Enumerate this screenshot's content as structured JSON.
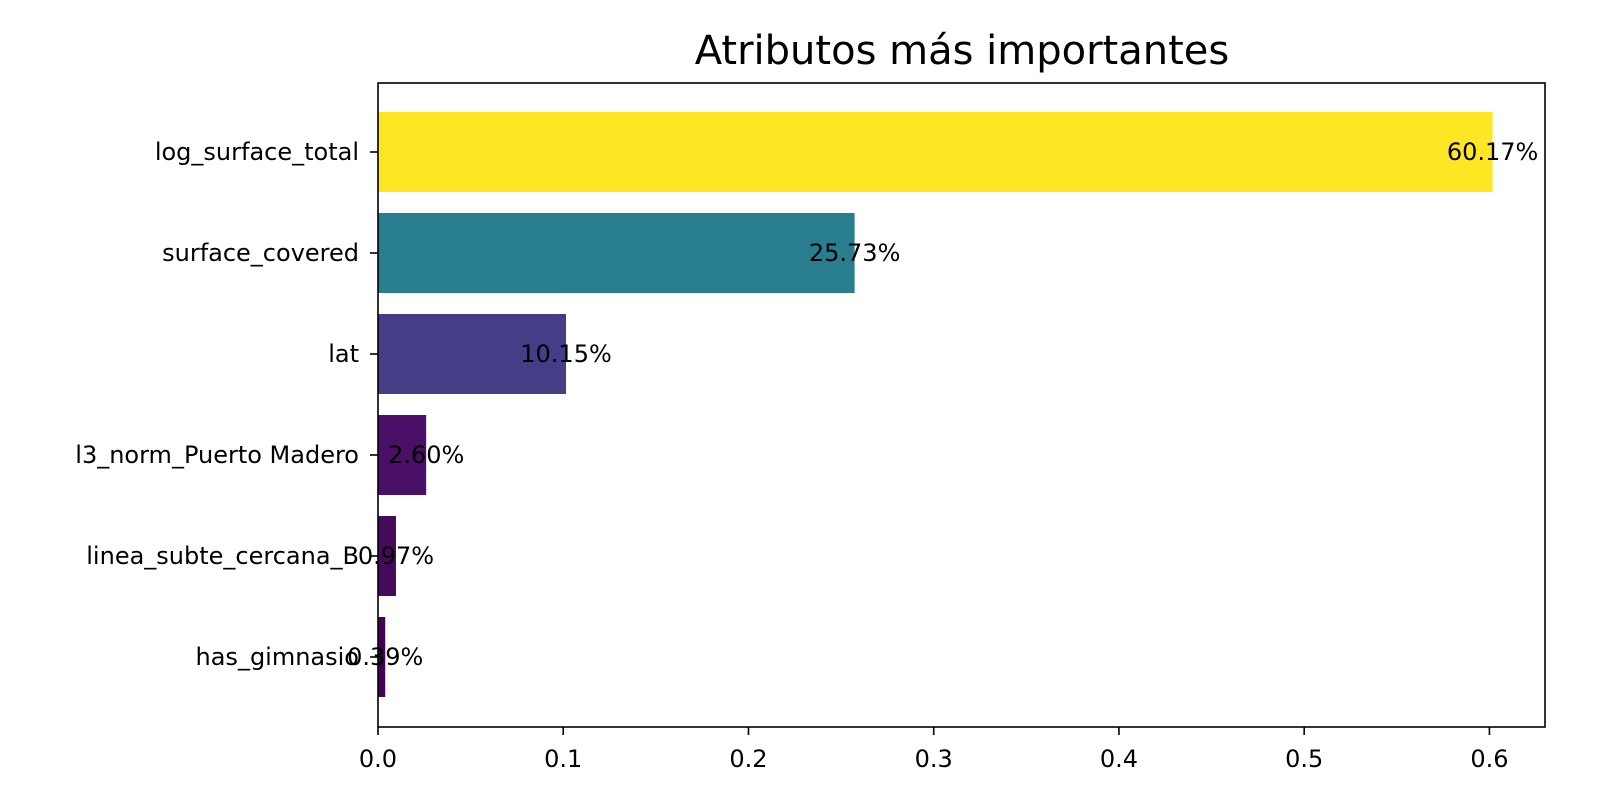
{
  "chart_data": {
    "type": "bar",
    "orientation": "horizontal",
    "title": "Atributos más importantes",
    "xlabel": "",
    "ylabel": "",
    "categories": [
      "log_surface_total",
      "surface_covered",
      "lat",
      "l3_norm_Puerto Madero",
      "linea_subte_cercana_B",
      "has_gimnasio"
    ],
    "values": [
      0.6017,
      0.2573,
      0.1015,
      0.026,
      0.0097,
      0.0039
    ],
    "data_labels": [
      "60.17%",
      "25.73%",
      "10.15%",
      "2.60%",
      "0.97%",
      "0.39%"
    ],
    "bar_colors": [
      "#fde725",
      "#287d8e",
      "#433e85",
      "#4a0f66",
      "#460a5d",
      "#440154"
    ],
    "xlim": [
      0,
      0.63
    ],
    "xticks": [
      0.0,
      0.1,
      0.2,
      0.3,
      0.4,
      0.5,
      0.6
    ],
    "xtick_labels": [
      "0.0",
      "0.1",
      "0.2",
      "0.3",
      "0.4",
      "0.5",
      "0.6"
    ],
    "grid": false,
    "legend": "none"
  }
}
